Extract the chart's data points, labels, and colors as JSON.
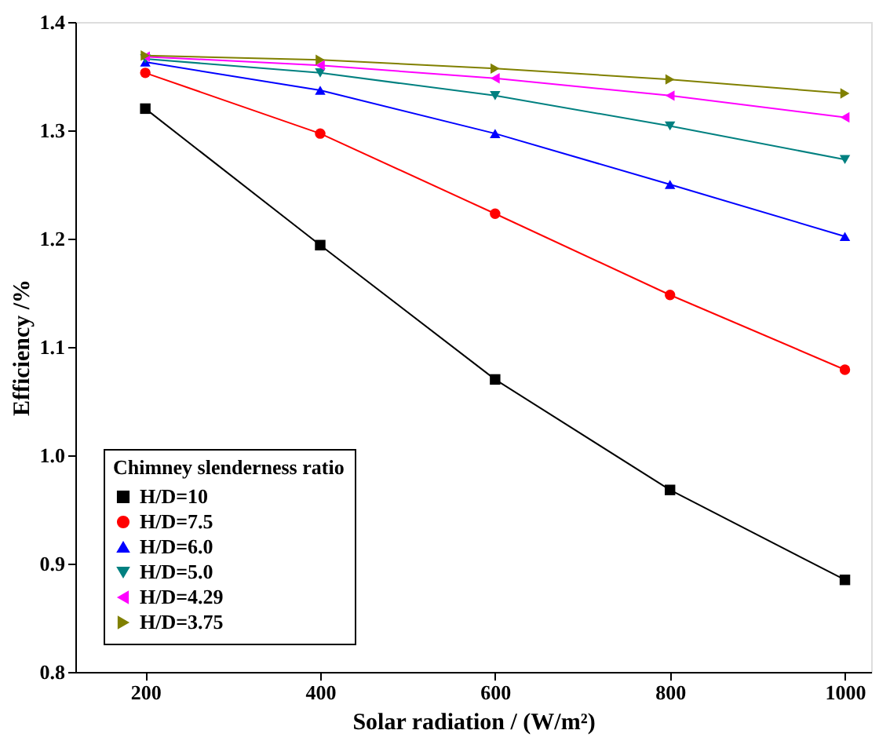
{
  "chart_data": {
    "type": "line",
    "xlabel": "Solar radiation / (W/m²)",
    "ylabel": "Efficiency /%",
    "legend_title": "Chimney slenderness ratio",
    "legend": "bottom left",
    "grid": false,
    "x": [
      200,
      400,
      600,
      800,
      1000
    ],
    "xlim": [
      120,
      1030
    ],
    "xticks": [
      200,
      400,
      600,
      800,
      1000
    ],
    "ylim": [
      0.8,
      1.4
    ],
    "yticks": [
      0.8,
      0.9,
      {
        "value": 1.0,
        "label": "1.0"
      },
      1.1,
      1.2,
      1.3,
      1.4
    ],
    "series": [
      {
        "name": "H/D=10",
        "color": "#000000",
        "marker": "square",
        "values": [
          1.32,
          1.194,
          1.07,
          0.968,
          0.885
        ]
      },
      {
        "name": "H/D=7.5",
        "color": "#ff0000",
        "marker": "circle",
        "values": [
          1.353,
          1.297,
          1.223,
          1.148,
          1.079
        ]
      },
      {
        "name": "H/D=6.0",
        "color": "#0000ff",
        "marker": "triangle",
        "values": [
          1.363,
          1.337,
          1.297,
          1.25,
          1.202
        ]
      },
      {
        "name": "H/D=5.0",
        "color": "#008080",
        "marker": "triangle",
        "values": [
          1.366,
          1.353,
          1.332,
          1.304,
          1.273
        ]
      },
      {
        "name": "H/D=4.29",
        "color": "#ff00ff",
        "marker": "triangle",
        "values": [
          1.368,
          1.36,
          1.348,
          1.332,
          1.312
        ]
      },
      {
        "name": "H/D=3.75",
        "color": "#808000",
        "marker": "triangle",
        "values": [
          1.369,
          1.365,
          1.357,
          1.347,
          1.334
        ]
      }
    ]
  }
}
